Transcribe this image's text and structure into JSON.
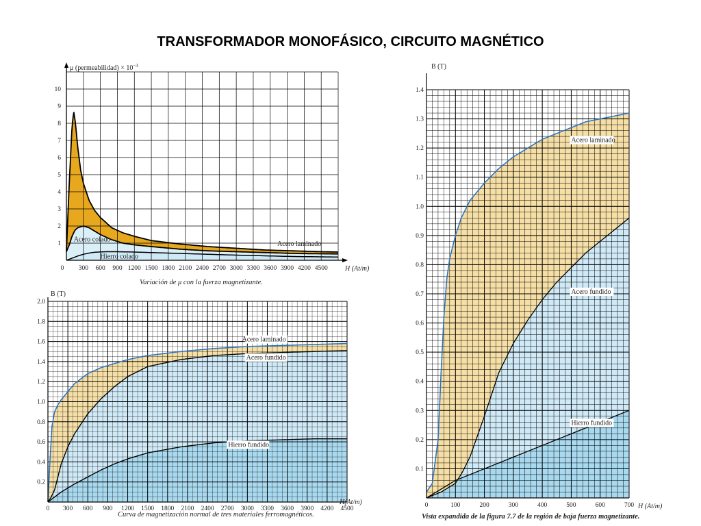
{
  "page": {
    "title": "TRANSFORMADOR MONOFÁSICO, CIRCUITO MAGNÉTICO"
  },
  "colors": {
    "gold": "#E8A81E",
    "light_gold": "#F6DFA6",
    "light_blue": "#CFE9F6",
    "blue": "#A9D9EF",
    "curve_blue": "#2F74C0",
    "grid": "#000000"
  },
  "chart_data": [
    {
      "id": "permeability",
      "type": "area",
      "ylabel": "μ (permeabilidad) × 10",
      "ylabel_exp": "−3",
      "xlabel": "H (At/m)",
      "caption": "Variación de μ con la fuerza magnetizante.",
      "xlim": [
        0,
        4800
      ],
      "ylim": [
        0,
        11
      ],
      "x_ticks": [
        "300",
        "600",
        "900",
        "1200",
        "1500",
        "1800",
        "2100",
        "2400",
        "2700",
        "3000",
        "3300",
        "3600",
        "3900",
        "4200",
        "4500"
      ],
      "x_zero_label": "0",
      "y_ticks": [
        "1",
        "2",
        "3",
        "4",
        "5",
        "6",
        "7",
        "8",
        "9",
        "10"
      ],
      "series": [
        {
          "name": "Acero laminado",
          "x": [
            0,
            50,
            100,
            130,
            160,
            200,
            250,
            300,
            400,
            500,
            600,
            800,
            1000,
            1200,
            1500,
            2000,
            2500,
            3000,
            3500,
            4000,
            4500,
            4800
          ],
          "y": [
            0.5,
            4.5,
            7.8,
            8.7,
            8.0,
            6.6,
            5.3,
            4.5,
            3.5,
            2.9,
            2.5,
            1.9,
            1.6,
            1.4,
            1.15,
            0.95,
            0.8,
            0.7,
            0.6,
            0.55,
            0.5,
            0.48
          ]
        },
        {
          "name": "Acero colado",
          "x": [
            0,
            50,
            100,
            150,
            200,
            300,
            400,
            500,
            600,
            700,
            800,
            1000,
            1200,
            1500,
            2000,
            2500,
            3000,
            3500,
            4000,
            4500,
            4800
          ],
          "y": [
            0.5,
            0.9,
            1.4,
            1.75,
            1.9,
            2.0,
            1.9,
            1.7,
            1.5,
            1.35,
            1.2,
            1.0,
            0.9,
            0.8,
            0.65,
            0.55,
            0.5,
            0.45,
            0.4,
            0.38,
            0.37
          ]
        },
        {
          "name": "Hierro colado",
          "x": [
            0,
            100,
            200,
            300,
            400,
            500,
            700,
            900,
            1200,
            1500,
            2000,
            2500,
            3000,
            3500,
            4000,
            4500,
            4800
          ],
          "y": [
            0.0,
            0.12,
            0.25,
            0.35,
            0.42,
            0.47,
            0.5,
            0.5,
            0.48,
            0.45,
            0.4,
            0.35,
            0.3,
            0.26,
            0.22,
            0.2,
            0.19
          ]
        }
      ]
    },
    {
      "id": "magnetization",
      "type": "area",
      "ylabel": "B (T)",
      "xlabel": "H(At/m)",
      "caption": "Curva de magnetización normal de tres materiales ferromagnéticos.",
      "xlim": [
        0,
        4500
      ],
      "ylim": [
        0,
        2.0
      ],
      "x_ticks": [
        "0",
        "300",
        "600",
        "900",
        "1200",
        "1500",
        "1800",
        "2100",
        "2400",
        "2700",
        "3000",
        "3300",
        "3600",
        "3900",
        "4200",
        "4500"
      ],
      "y_ticks": [
        "0.2",
        "0.4",
        "0.6",
        "0.8",
        "1.0",
        "1.2",
        "1.4",
        "1.6",
        "1.8",
        "2.0"
      ],
      "series": [
        {
          "name": "Acero laminado",
          "x": [
            0,
            30,
            60,
            100,
            150,
            200,
            300,
            400,
            600,
            800,
            1000,
            1200,
            1500,
            2000,
            2500,
            3000,
            3500,
            4000,
            4500
          ],
          "y": [
            0,
            0.4,
            0.75,
            0.9,
            0.97,
            1.02,
            1.1,
            1.18,
            1.28,
            1.34,
            1.38,
            1.42,
            1.46,
            1.5,
            1.53,
            1.55,
            1.56,
            1.57,
            1.58
          ]
        },
        {
          "name": "Acero fundido",
          "x": [
            0,
            50,
            100,
            150,
            200,
            300,
            400,
            500,
            600,
            800,
            1000,
            1200,
            1500,
            2000,
            2500,
            3000,
            3500,
            4000,
            4500
          ],
          "y": [
            0,
            0.05,
            0.12,
            0.25,
            0.38,
            0.55,
            0.68,
            0.78,
            0.88,
            1.03,
            1.15,
            1.25,
            1.35,
            1.42,
            1.46,
            1.48,
            1.49,
            1.5,
            1.51
          ]
        },
        {
          "name": "Hierro fundido",
          "x": [
            0,
            100,
            200,
            300,
            400,
            600,
            800,
            1000,
            1200,
            1500,
            2000,
            2500,
            3000,
            3500,
            4000,
            4500
          ],
          "y": [
            0,
            0.05,
            0.1,
            0.14,
            0.18,
            0.25,
            0.32,
            0.38,
            0.43,
            0.49,
            0.55,
            0.59,
            0.61,
            0.62,
            0.63,
            0.63
          ]
        }
      ],
      "labels": [
        "Acero laminado",
        "Acero fundido",
        "Hierro fundido"
      ]
    },
    {
      "id": "low_field",
      "type": "area",
      "ylabel": "B (T)",
      "xlabel": "H (At/m)",
      "caption": "Vista expandida de la figura 7.7 de la región de baja fuerza magnetizante.",
      "xlim": [
        0,
        700
      ],
      "ylim": [
        0,
        1.4
      ],
      "x_ticks": [
        "0",
        "100",
        "200",
        "300",
        "400",
        "500",
        "600",
        "700"
      ],
      "y_ticks": [
        "0.1",
        "0.2",
        "0.3",
        "0.4",
        "0.5",
        "0.6",
        "0.7",
        "0.8",
        "0.9",
        "1.0",
        "1.1",
        "1.2",
        "1.3",
        "1.4"
      ],
      "series": [
        {
          "name": "Acero laminado",
          "x": [
            0,
            20,
            40,
            50,
            60,
            70,
            80,
            100,
            120,
            150,
            200,
            250,
            300,
            350,
            400,
            450,
            500,
            550,
            600,
            650,
            700
          ],
          "y": [
            0.02,
            0.05,
            0.2,
            0.42,
            0.62,
            0.75,
            0.82,
            0.9,
            0.96,
            1.02,
            1.08,
            1.13,
            1.17,
            1.2,
            1.23,
            1.25,
            1.27,
            1.29,
            1.3,
            1.31,
            1.32
          ]
        },
        {
          "name": "Acero fundido",
          "x": [
            0,
            50,
            100,
            125,
            150,
            200,
            250,
            300,
            350,
            400,
            450,
            500,
            550,
            600,
            650,
            700
          ],
          "y": [
            0,
            0.02,
            0.05,
            0.09,
            0.14,
            0.28,
            0.43,
            0.53,
            0.61,
            0.68,
            0.74,
            0.79,
            0.84,
            0.88,
            0.92,
            0.96
          ]
        },
        {
          "name": "Hierro fundido",
          "x": [
            0,
            100,
            200,
            300,
            400,
            500,
            600,
            700
          ],
          "y": [
            0.0,
            0.06,
            0.1,
            0.14,
            0.18,
            0.22,
            0.26,
            0.3
          ]
        }
      ]
    }
  ]
}
